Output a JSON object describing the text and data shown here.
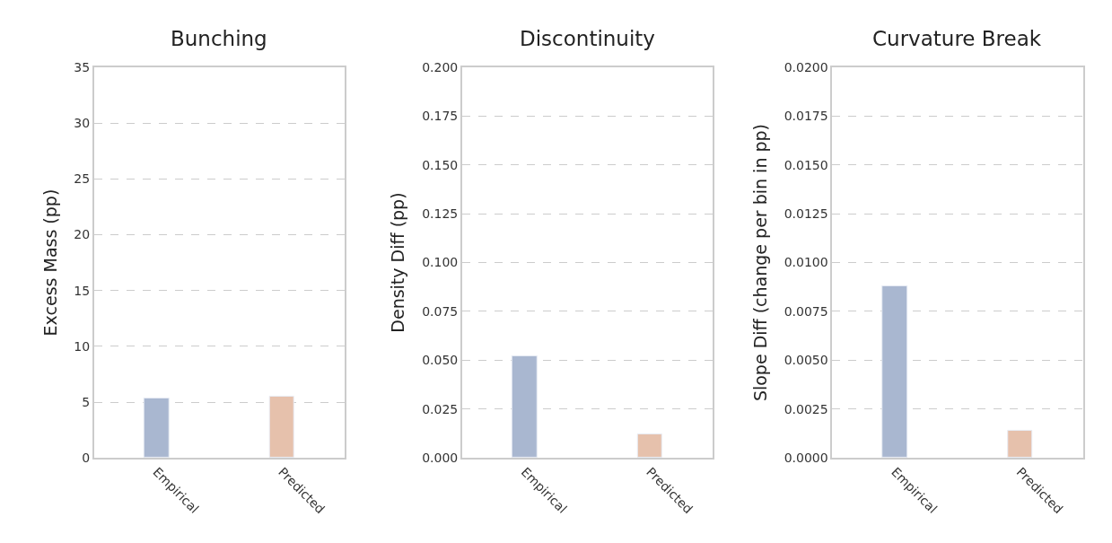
{
  "chart_data": [
    {
      "type": "bar",
      "title": "Bunching",
      "ylabel": "Excess Mass (pp)",
      "categories": [
        "Empirical",
        "Predicted"
      ],
      "values": [
        5.3,
        5.5
      ],
      "colors": [
        "#a9b7d0",
        "#e6c1ac"
      ],
      "ylim": [
        0,
        35
      ],
      "yticks": [
        0,
        5,
        10,
        15,
        20,
        25,
        30,
        35
      ],
      "grid": "y"
    },
    {
      "type": "bar",
      "title": "Discontinuity",
      "ylabel": "Density Diff (pp)",
      "categories": [
        "Empirical",
        "Predicted"
      ],
      "values": [
        0.052,
        0.012
      ],
      "colors": [
        "#a9b7d0",
        "#e6c1ac"
      ],
      "ylim": [
        0,
        0.2
      ],
      "yticks": [
        {
          "value": 0,
          "label": "0.000"
        },
        {
          "value": 0.025,
          "label": "0.025"
        },
        {
          "value": 0.05,
          "label": "0.050"
        },
        {
          "value": 0.075,
          "label": "0.075"
        },
        {
          "value": 0.1,
          "label": "0.100"
        },
        {
          "value": 0.125,
          "label": "0.125"
        },
        {
          "value": 0.15,
          "label": "0.150"
        },
        {
          "value": 0.175,
          "label": "0.175"
        },
        {
          "value": 0.2,
          "label": "0.200"
        }
      ],
      "grid": "y"
    },
    {
      "type": "bar",
      "title": "Curvature Break",
      "ylabel": "Slope Diff (change per bin in pp)",
      "categories": [
        "Empirical",
        "Predicted"
      ],
      "values": [
        0.0088,
        0.0014
      ],
      "colors": [
        "#a9b7d0",
        "#e6c1ac"
      ],
      "ylim": [
        0,
        0.02
      ],
      "yticks": [
        {
          "value": 0,
          "label": "0.0000"
        },
        {
          "value": 0.0025,
          "label": "0.0025"
        },
        {
          "value": 0.005,
          "label": "0.0050"
        },
        {
          "value": 0.0075,
          "label": "0.0075"
        },
        {
          "value": 0.01,
          "label": "0.0100"
        },
        {
          "value": 0.0125,
          "label": "0.0125"
        },
        {
          "value": 0.015,
          "label": "0.0150"
        },
        {
          "value": 0.0175,
          "label": "0.0175"
        },
        {
          "value": 0.02,
          "label": "0.0200"
        }
      ],
      "grid": "y"
    }
  ]
}
